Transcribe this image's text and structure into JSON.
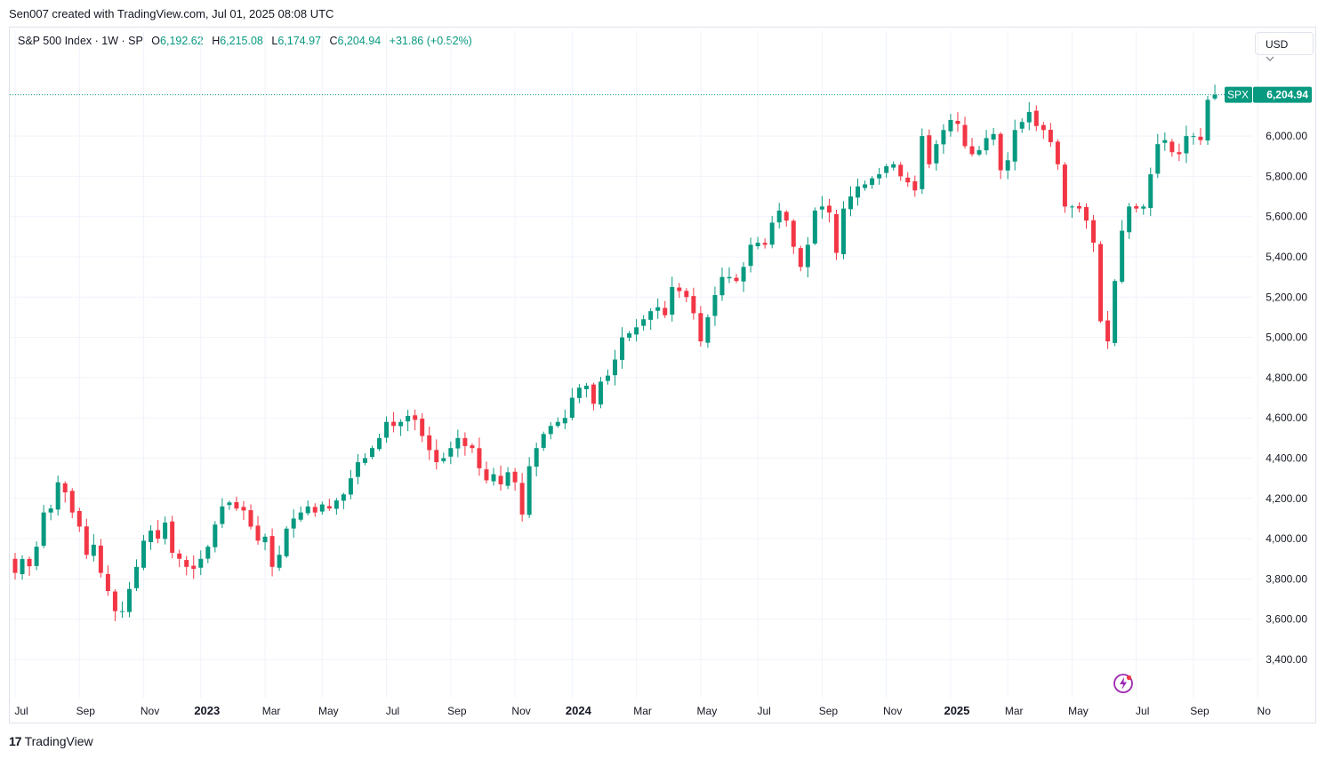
{
  "caption": "Sen007 created with TradingView.com, Jul 01, 2025 08:08 UTC",
  "legend": {
    "symbol": "S&P 500 Index · 1W · SP",
    "open_label": "O",
    "open": "6,192.62",
    "high_label": "H",
    "high": "6,215.08",
    "low_label": "L",
    "low": "6,174.97",
    "close_label": "C",
    "close": "6,204.94",
    "change": "+31.86 (+0.52%)"
  },
  "currency": "USD",
  "price_tag": {
    "symbol": "SPX",
    "value": "6,204.94"
  },
  "footer": {
    "logo": "17",
    "brand": "TradingView"
  },
  "icons": {
    "alert": "bolt-icon",
    "logo": "tradingview-logo-icon",
    "scale": "chevron-down-icon"
  },
  "colors": {
    "up": "#089981",
    "down": "#f23645",
    "grid": "#f0f3fa",
    "text": "#131722"
  },
  "chart_data": {
    "type": "candlestick",
    "interval": "1W",
    "ylim": [
      3300,
      6400
    ],
    "y_ticks": [
      "3,400.00",
      "3,600.00",
      "3,800.00",
      "4,000.00",
      "4,200.00",
      "4,400.00",
      "4,600.00",
      "4,800.00",
      "5,000.00",
      "5,200.00",
      "5,400.00",
      "5,600.00",
      "5,800.00",
      "6,000.00"
    ],
    "y_tick_values": [
      3400,
      3600,
      3800,
      4000,
      4200,
      4400,
      4600,
      4800,
      5000,
      5200,
      5400,
      5600,
      5800,
      6000
    ],
    "x_labels": [
      {
        "label": "Jul",
        "week": 0,
        "bold": false
      },
      {
        "label": "Sep",
        "week": 9,
        "bold": false
      },
      {
        "label": "Nov",
        "week": 18,
        "bold": false
      },
      {
        "label": "2023",
        "week": 26,
        "bold": true
      },
      {
        "label": "Mar",
        "week": 35,
        "bold": false
      },
      {
        "label": "May",
        "week": 43,
        "bold": false
      },
      {
        "label": "Jul",
        "week": 52,
        "bold": false
      },
      {
        "label": "Sep",
        "week": 61,
        "bold": false
      },
      {
        "label": "Nov",
        "week": 70,
        "bold": false
      },
      {
        "label": "2024",
        "week": 78,
        "bold": true
      },
      {
        "label": "Mar",
        "week": 87,
        "bold": false
      },
      {
        "label": "May",
        "week": 96,
        "bold": false
      },
      {
        "label": "Jul",
        "week": 104,
        "bold": false
      },
      {
        "label": "Sep",
        "week": 113,
        "bold": false
      },
      {
        "label": "Nov",
        "week": 122,
        "bold": false
      },
      {
        "label": "2025",
        "week": 131,
        "bold": true
      },
      {
        "label": "Mar",
        "week": 139,
        "bold": false
      },
      {
        "label": "May",
        "week": 148,
        "bold": false
      },
      {
        "label": "Jul",
        "week": 157,
        "bold": false
      },
      {
        "label": "Sep",
        "week": 165,
        "bold": false
      },
      {
        "label": "No",
        "week": 174,
        "bold": false
      }
    ],
    "last_price": 6204.94,
    "close": [
      3830,
      3899,
      3863,
      3960,
      4130,
      4150,
      4280,
      4230,
      4130,
      4060,
      3920,
      3970,
      3830,
      3740,
      3640,
      3640,
      3750,
      3860,
      3990,
      4040,
      4000,
      4080,
      3930,
      3900,
      3860,
      3850,
      3900,
      3960,
      4070,
      4160,
      4180,
      4150,
      4140,
      4060,
      3990,
      4010,
      3860,
      3920,
      4050,
      4100,
      4130,
      4160,
      4130,
      4170,
      4150,
      4190,
      4220,
      4300,
      4380,
      4400,
      4450,
      4500,
      4580,
      4560,
      4580,
      4610,
      4590,
      4510,
      4440,
      4380,
      4400,
      4450,
      4500,
      4460,
      4450,
      4350,
      4290,
      4320,
      4270,
      4330,
      4280,
      4120,
      4360,
      4450,
      4520,
      4560,
      4580,
      4600,
      4700,
      4750,
      4760,
      4670,
      4780,
      4810,
      4890,
      5000,
      5020,
      5050,
      5090,
      5130,
      5150,
      5110,
      5250,
      5230,
      5200,
      5120,
      4980,
      5100,
      5210,
      5300,
      5300,
      5280,
      5350,
      5460,
      5470,
      5460,
      5570,
      5630,
      5580,
      5450,
      5350,
      5460,
      5630,
      5650,
      5620,
      5420,
      5640,
      5700,
      5750,
      5760,
      5790,
      5810,
      5850,
      5860,
      5800,
      5770,
      5730,
      6000,
      5860,
      5960,
      6030,
      6080,
      6060,
      5950,
      5910,
      5930,
      5990,
      6010,
      5830,
      5880,
      6030,
      6070,
      6120,
      6050,
      6030,
      5970,
      5860,
      5650,
      5650,
      5640,
      5580,
      5470,
      5080,
      4980,
      5280,
      5530,
      5650,
      5640,
      5650,
      5810,
      5960,
      5980,
      5920,
      5910,
      6000,
      6000,
      5980,
      6180,
      6204.94
    ]
  }
}
